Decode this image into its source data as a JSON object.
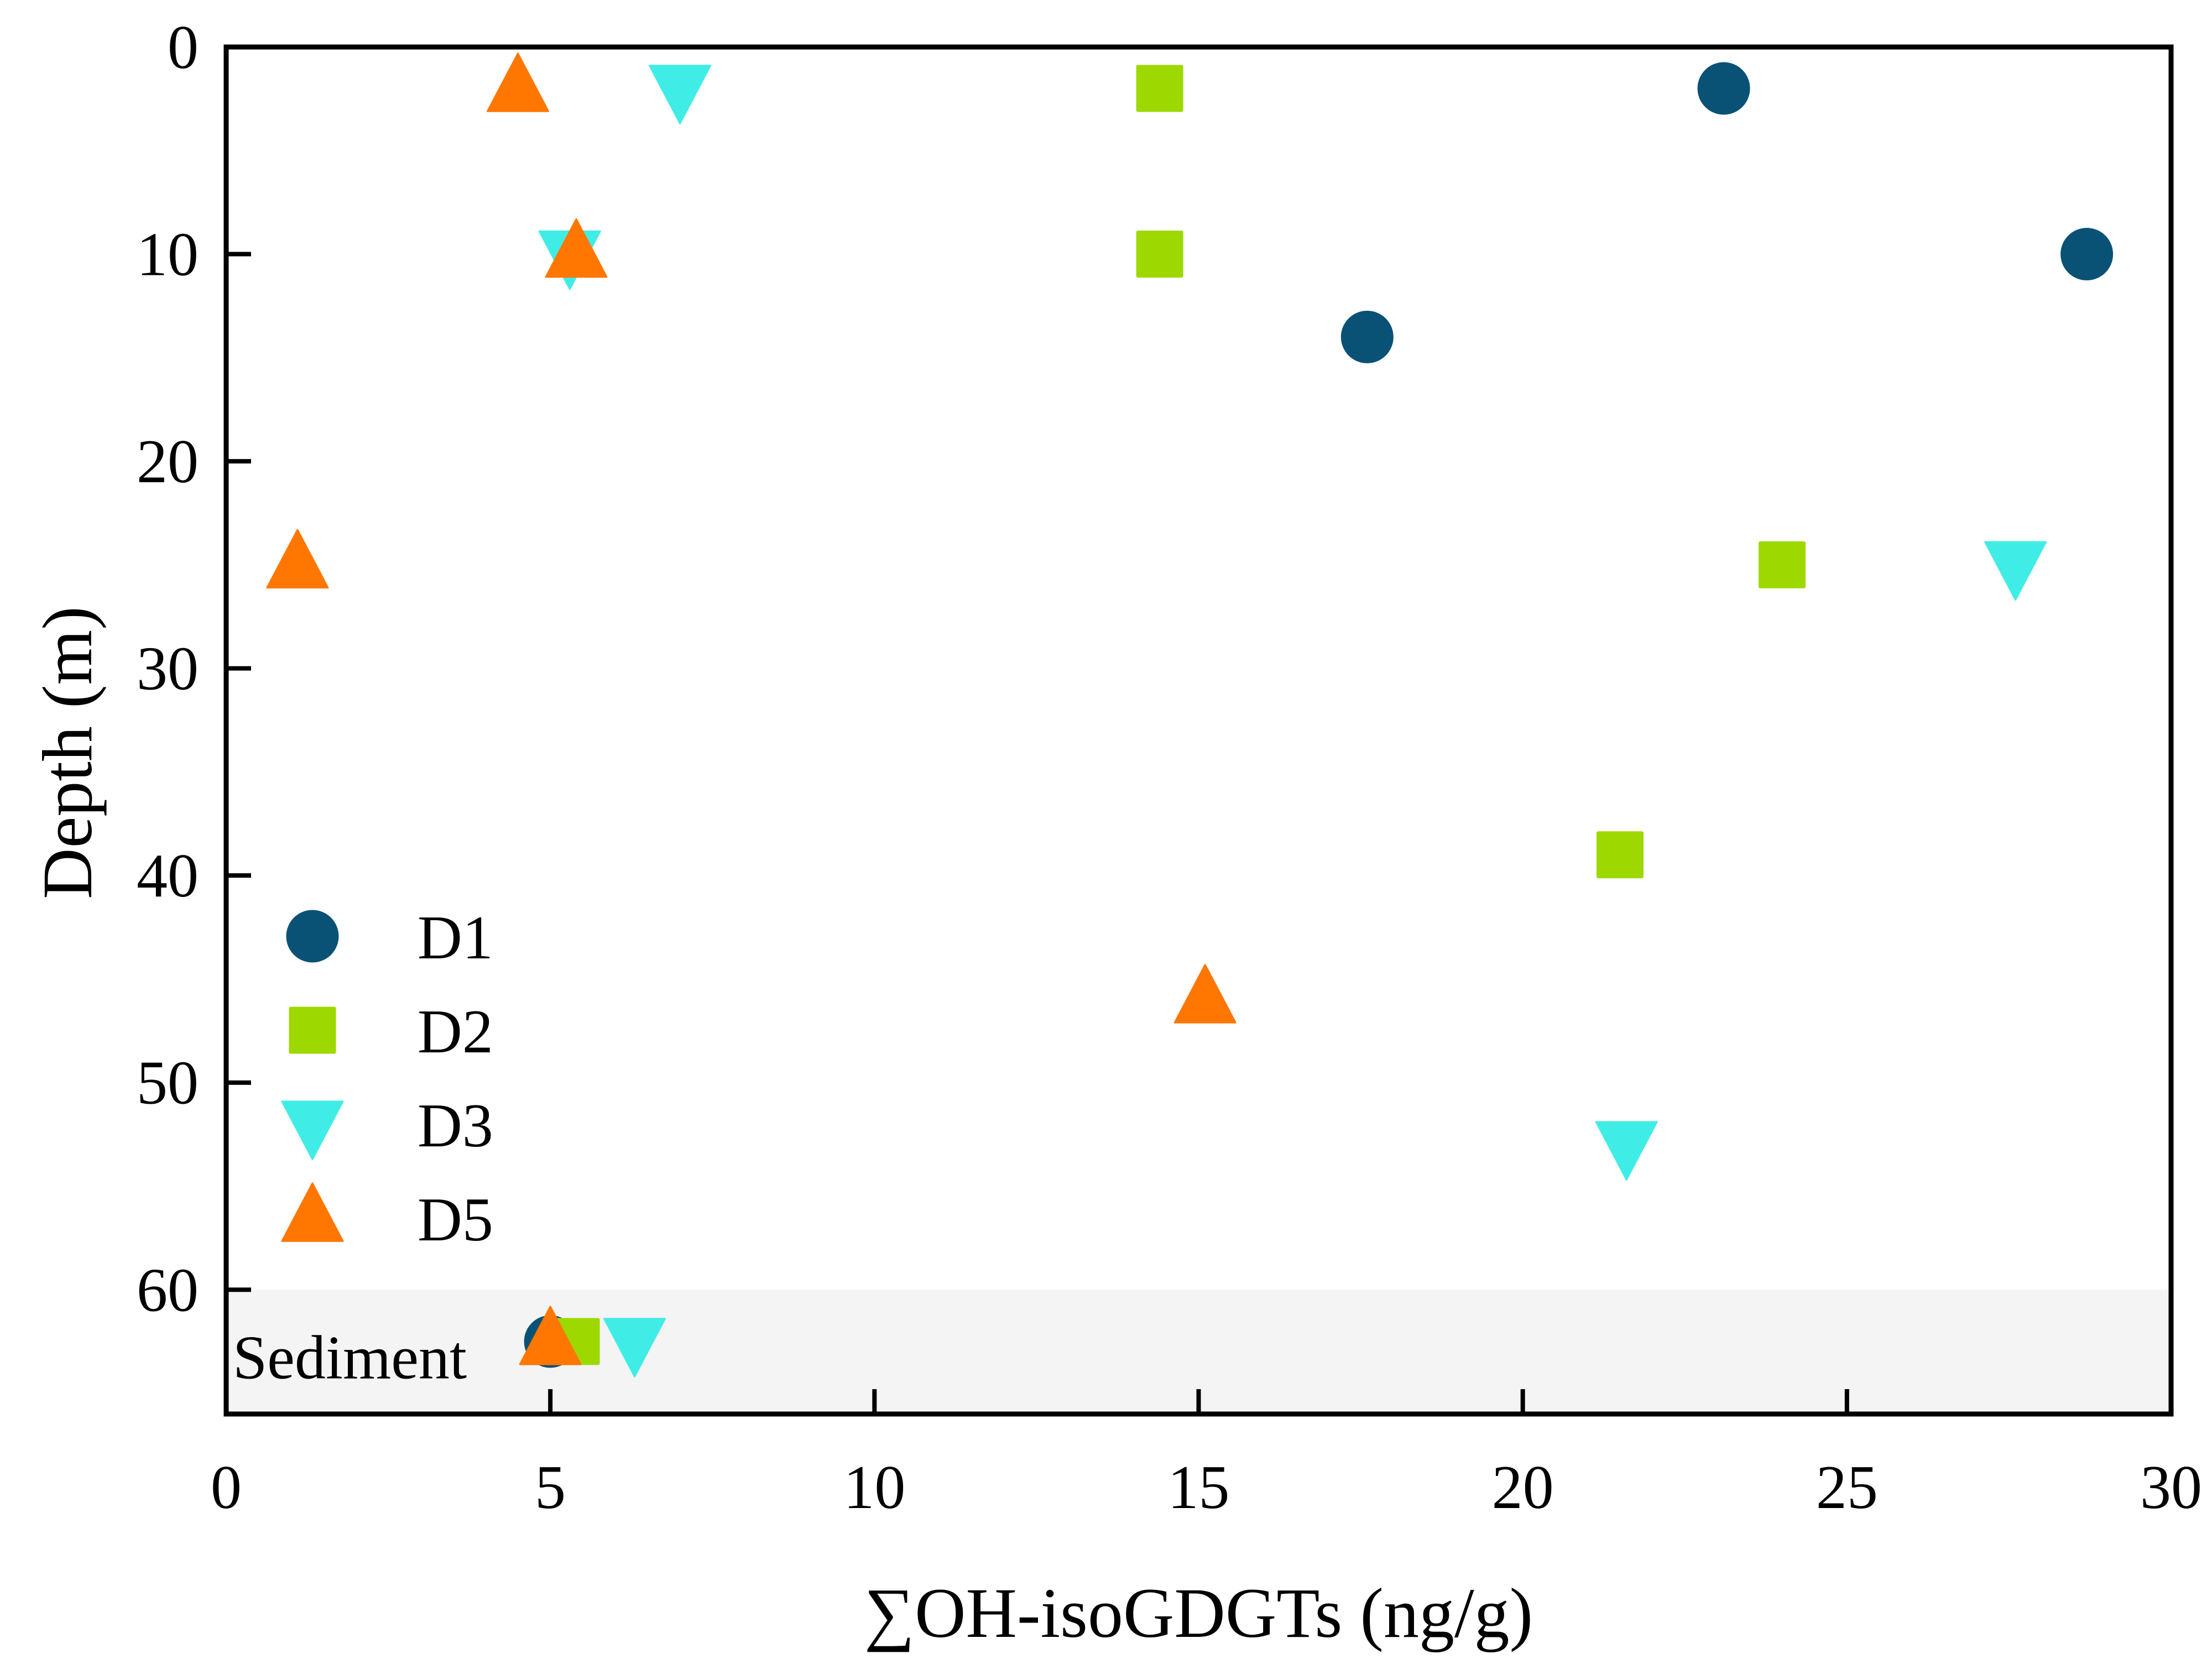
{
  "chart_data": {
    "type": "scatter",
    "title": "",
    "xlabel": "∑OH-isoGDGTs (ng/g)",
    "ylabel": "Depth (m)",
    "xlim": [
      0,
      30
    ],
    "ylim": [
      0,
      66
    ],
    "y_inverted": true,
    "x_ticks": [
      0,
      5,
      10,
      15,
      20,
      25,
      30
    ],
    "y_ticks": [
      0,
      10,
      20,
      30,
      40,
      50,
      60
    ],
    "x_tick_labels": [
      "0",
      "5",
      "10",
      "15",
      "20",
      "25",
      "30"
    ],
    "y_tick_labels": [
      "0",
      "10",
      "20",
      "30",
      "40",
      "50",
      "60"
    ],
    "grid": false,
    "legend_position": "bottom-left",
    "shaded_band": {
      "label": "Sediment",
      "y_from": 60,
      "y_to": 66,
      "color": "#f4f4f4"
    },
    "series": [
      {
        "name": "D1",
        "marker": "circle",
        "color": "#0a5275",
        "points": [
          {
            "x": 23.1,
            "y": 2
          },
          {
            "x": 28.7,
            "y": 10
          },
          {
            "x": 17.6,
            "y": 14
          },
          {
            "x": 5.0,
            "y": 62.5
          }
        ]
      },
      {
        "name": "D2",
        "marker": "square",
        "color": "#9dd900",
        "points": [
          {
            "x": 14.4,
            "y": 2
          },
          {
            "x": 14.4,
            "y": 10
          },
          {
            "x": 24.0,
            "y": 25
          },
          {
            "x": 21.5,
            "y": 39
          },
          {
            "x": 5.4,
            "y": 62.5
          }
        ]
      },
      {
        "name": "D3",
        "marker": "triangle-down",
        "color": "#40ede6",
        "points": [
          {
            "x": 7.0,
            "y": 2
          },
          {
            "x": 5.3,
            "y": 10
          },
          {
            "x": 27.6,
            "y": 25
          },
          {
            "x": 21.6,
            "y": 53
          },
          {
            "x": 6.3,
            "y": 62.5
          }
        ]
      },
      {
        "name": "D5",
        "marker": "triangle-up",
        "color": "#ff7700",
        "points": [
          {
            "x": 4.5,
            "y": 2
          },
          {
            "x": 5.4,
            "y": 10
          },
          {
            "x": 1.1,
            "y": 25
          },
          {
            "x": 15.1,
            "y": 46
          },
          {
            "x": 5.0,
            "y": 62.5
          }
        ]
      }
    ]
  }
}
